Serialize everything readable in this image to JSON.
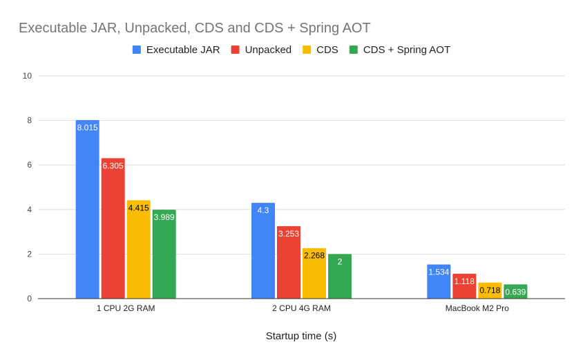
{
  "chart_data": {
    "type": "bar",
    "title": "Executable JAR, Unpacked, CDS and CDS + Spring AOT",
    "xlabel": "Startup time (s)",
    "ylabel": "",
    "ylim": [
      0,
      10
    ],
    "yticks": [
      "0",
      "2",
      "4",
      "6",
      "8",
      "10"
    ],
    "grid": true,
    "legend_position": "top",
    "categories": [
      "1 CPU 2G RAM",
      "2 CPU 4G RAM",
      "MacBook M2 Pro"
    ],
    "series": [
      {
        "name": "Executable JAR",
        "color": "#4285f4",
        "label_color": "#ffffff",
        "values": [
          8.015,
          4.3,
          1.534
        ],
        "labels": [
          "8.015",
          "4.3",
          "1.534"
        ]
      },
      {
        "name": "Unpacked",
        "color": "#ea4335",
        "label_color": "#ffffff",
        "values": [
          6.305,
          3.253,
          1.118
        ],
        "labels": [
          "6.305",
          "3.253",
          "1.118"
        ]
      },
      {
        "name": "CDS",
        "color": "#fbbc04",
        "label_color": "#000000",
        "values": [
          4.415,
          2.268,
          0.718
        ],
        "labels": [
          "4.415",
          "2.268",
          "0.718"
        ]
      },
      {
        "name": "CDS + Spring AOT",
        "color": "#34a853",
        "label_color": "#ffffff",
        "values": [
          3.989,
          2,
          0.639
        ],
        "labels": [
          "3.989",
          "2",
          "0.639"
        ]
      }
    ]
  }
}
